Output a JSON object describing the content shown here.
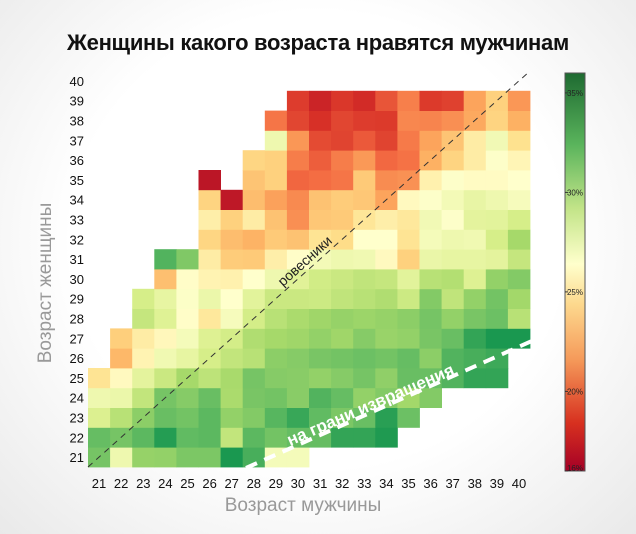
{
  "chart_data": {
    "type": "heatmap",
    "title": "Женщины какого возраста нравятся мужчинам",
    "xlabel": "Возраст мужчины",
    "ylabel": "Возраст женщины",
    "x": [
      21,
      22,
      23,
      24,
      25,
      26,
      27,
      28,
      29,
      30,
      31,
      32,
      33,
      34,
      35,
      36,
      37,
      38,
      39,
      40
    ],
    "y": [
      21,
      22,
      23,
      24,
      25,
      26,
      27,
      28,
      29,
      30,
      31,
      32,
      33,
      34,
      35,
      36,
      37,
      38,
      39,
      40
    ],
    "colorbar": {
      "ticks": [
        35,
        30,
        25,
        20,
        16
      ],
      "tick_labels": [
        "35%",
        "30%",
        "25%",
        "20%",
        "16%"
      ],
      "range": [
        16,
        36
      ]
    },
    "annotations": [
      {
        "text": "ровесники",
        "style": "dashed-diagonal"
      },
      {
        "text": "на грани извращения",
        "style": "white-dashed-line"
      }
    ],
    "values": [
      [
        32.5,
        27.6,
        31.5,
        31.6,
        32.3,
        32.3,
        34.5,
        33.6,
        27.2,
        27.2,
        null,
        null,
        null,
        null,
        null,
        null,
        null,
        null,
        null,
        null
      ],
      [
        33.0,
        32.5,
        33.2,
        34.3,
        33.1,
        33.2,
        29.9,
        33.2,
        32.6,
        33.0,
        33.0,
        34.0,
        34.0,
        34.4,
        null,
        null,
        null,
        null,
        null,
        null
      ],
      [
        28.8,
        30.3,
        31.8,
        32.9,
        32.6,
        33.2,
        31.6,
        32.1,
        33.3,
        33.9,
        33.1,
        32.3,
        32.9,
        34.2,
        32.8,
        null,
        null,
        null,
        null,
        null
      ],
      [
        27.6,
        27.8,
        29.9,
        32.5,
        32.0,
        32.9,
        30.8,
        32.4,
        32.6,
        31.9,
        33.4,
        33.0,
        31.6,
        32.1,
        31.1,
        32.1,
        null,
        null,
        null,
        null
      ],
      [
        25.2,
        26.2,
        28.3,
        29.6,
        31.0,
        30.1,
        30.9,
        32.5,
        32.0,
        31.9,
        31.6,
        32.0,
        32.5,
        31.7,
        32.9,
        32.9,
        33.4,
        34.0,
        34.0,
        null
      ],
      [
        null,
        23.4,
        25.9,
        27.5,
        28.1,
        29.1,
        29.9,
        30.3,
        31.8,
        32.0,
        32.4,
        32.6,
        32.8,
        32.6,
        33.0,
        31.8,
        33.4,
        33.6,
        33.8,
        null
      ],
      [
        null,
        24.3,
        25.6,
        26.1,
        27.2,
        28.7,
        29.2,
        30.6,
        31.0,
        31.2,
        31.6,
        31.2,
        32.0,
        31.4,
        31.6,
        32.4,
        32.9,
        34.0,
        34.5,
        34.5
      ],
      [
        null,
        null,
        29.8,
        28.6,
        26.4,
        25.4,
        27.1,
        29.2,
        30.3,
        30.8,
        31.2,
        31.5,
        31.3,
        31.5,
        31.8,
        32.5,
        31.6,
        32.4,
        32.8,
        30.3
      ],
      [
        null,
        null,
        29.1,
        28.1,
        26.7,
        27.8,
        26.5,
        28.4,
        29.6,
        29.6,
        29.5,
        30.0,
        30.3,
        30.6,
        29.5,
        32.1,
        30.0,
        31.6,
        32.6,
        31.1
      ],
      [
        null,
        null,
        null,
        23.7,
        26.4,
        25.9,
        25.8,
        26.5,
        27.6,
        28.5,
        29.3,
        29.6,
        30.0,
        29.8,
        28.4,
        30.3,
        30.5,
        28.7,
        31.6,
        32.1
      ],
      [
        null,
        null,
        null,
        33.4,
        32.2,
        25.6,
        24.2,
        24.1,
        25.7,
        26.4,
        27.3,
        27.6,
        27.5,
        26.2,
        24.4,
        27.9,
        28.1,
        28.1,
        28.3,
        29.8
      ],
      [
        null,
        null,
        null,
        null,
        null,
        24.6,
        23.6,
        23.2,
        24.1,
        23.8,
        25.2,
        24.9,
        26.5,
        26.5,
        25.2,
        27.2,
        27.6,
        27.5,
        29.1,
        31.0
      ],
      [
        null,
        null,
        null,
        null,
        null,
        25.7,
        24.4,
        25.6,
        23.8,
        21.8,
        24.0,
        24.1,
        25.3,
        25.7,
        25.4,
        27.4,
        26.6,
        28.3,
        28.4,
        29.1
      ],
      [
        null,
        null,
        null,
        null,
        null,
        24.5,
        17.0,
        23.6,
        22.5,
        21.6,
        23.8,
        24.2,
        24.0,
        22.6,
        26.2,
        26.6,
        27.3,
        28.0,
        27.6,
        27.1
      ],
      [
        null,
        null,
        null,
        null,
        null,
        16.9,
        null,
        23.9,
        24.4,
        20.2,
        20.5,
        20.8,
        24.1,
        21.7,
        21.9,
        25.8,
        26.6,
        26.3,
        26.3,
        26.5
      ],
      [
        null,
        null,
        null,
        null,
        null,
        null,
        null,
        24.6,
        24.4,
        21.1,
        19.9,
        21.1,
        22.2,
        20.3,
        20.7,
        23.1,
        24.5,
        25.6,
        26.6,
        26.0
      ],
      [
        null,
        null,
        null,
        null,
        null,
        null,
        null,
        null,
        27.6,
        22.1,
        19.1,
        18.8,
        19.7,
        18.8,
        21.0,
        22.6,
        23.9,
        25.6,
        27.4,
        25.1
      ],
      [
        null,
        null,
        null,
        null,
        null,
        null,
        null,
        null,
        20.8,
        18.9,
        18.0,
        18.9,
        18.5,
        18.4,
        21.5,
        21.4,
        21.8,
        22.8,
        24.5,
        23.1
      ],
      [
        null,
        null,
        null,
        null,
        null,
        null,
        null,
        null,
        null,
        18.5,
        17.5,
        18.3,
        17.8,
        19.5,
        21.2,
        18.4,
        18.7,
        22.6,
        24.4,
        22.1
      ],
      [
        null,
        null,
        null,
        null,
        null,
        null,
        null,
        null,
        null,
        null,
        null,
        null,
        null,
        null,
        null,
        null,
        null,
        null,
        null,
        null
      ]
    ]
  }
}
